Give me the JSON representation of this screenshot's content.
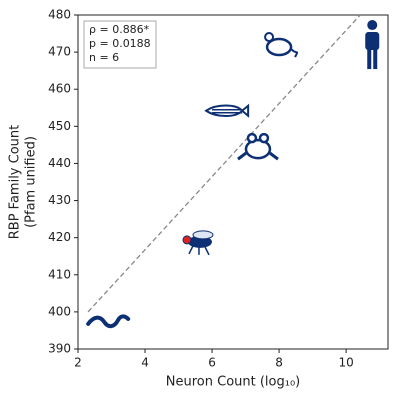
{
  "chart_data": {
    "type": "scatter",
    "xlabel": "Neuron Count (log₁₀)",
    "ylabel": [
      "RBP Family Count",
      "(Pfam unified)"
    ],
    "x": [
      2.9,
      5.55,
      7.37,
      6.42,
      7.94,
      10.78
    ],
    "values": [
      397.3,
      419.4,
      444.4,
      454.2,
      471.9,
      471.9
    ],
    "color": "#0d2f73",
    "fit_line": {
      "x": [
        2.3,
        10.42
      ],
      "values": [
        400,
        480
      ],
      "color": "#888888"
    },
    "annotation": [
      "ρ = 0.886*",
      "p = 0.0188",
      "n = 6"
    ],
    "xlim": [
      2,
      11.25
    ],
    "xticks": [
      2,
      4,
      6,
      8,
      10
    ],
    "ylim": [
      390,
      480
    ],
    "yticks": [
      390,
      400,
      410,
      420,
      430,
      440,
      450,
      460,
      470,
      480
    ]
  }
}
